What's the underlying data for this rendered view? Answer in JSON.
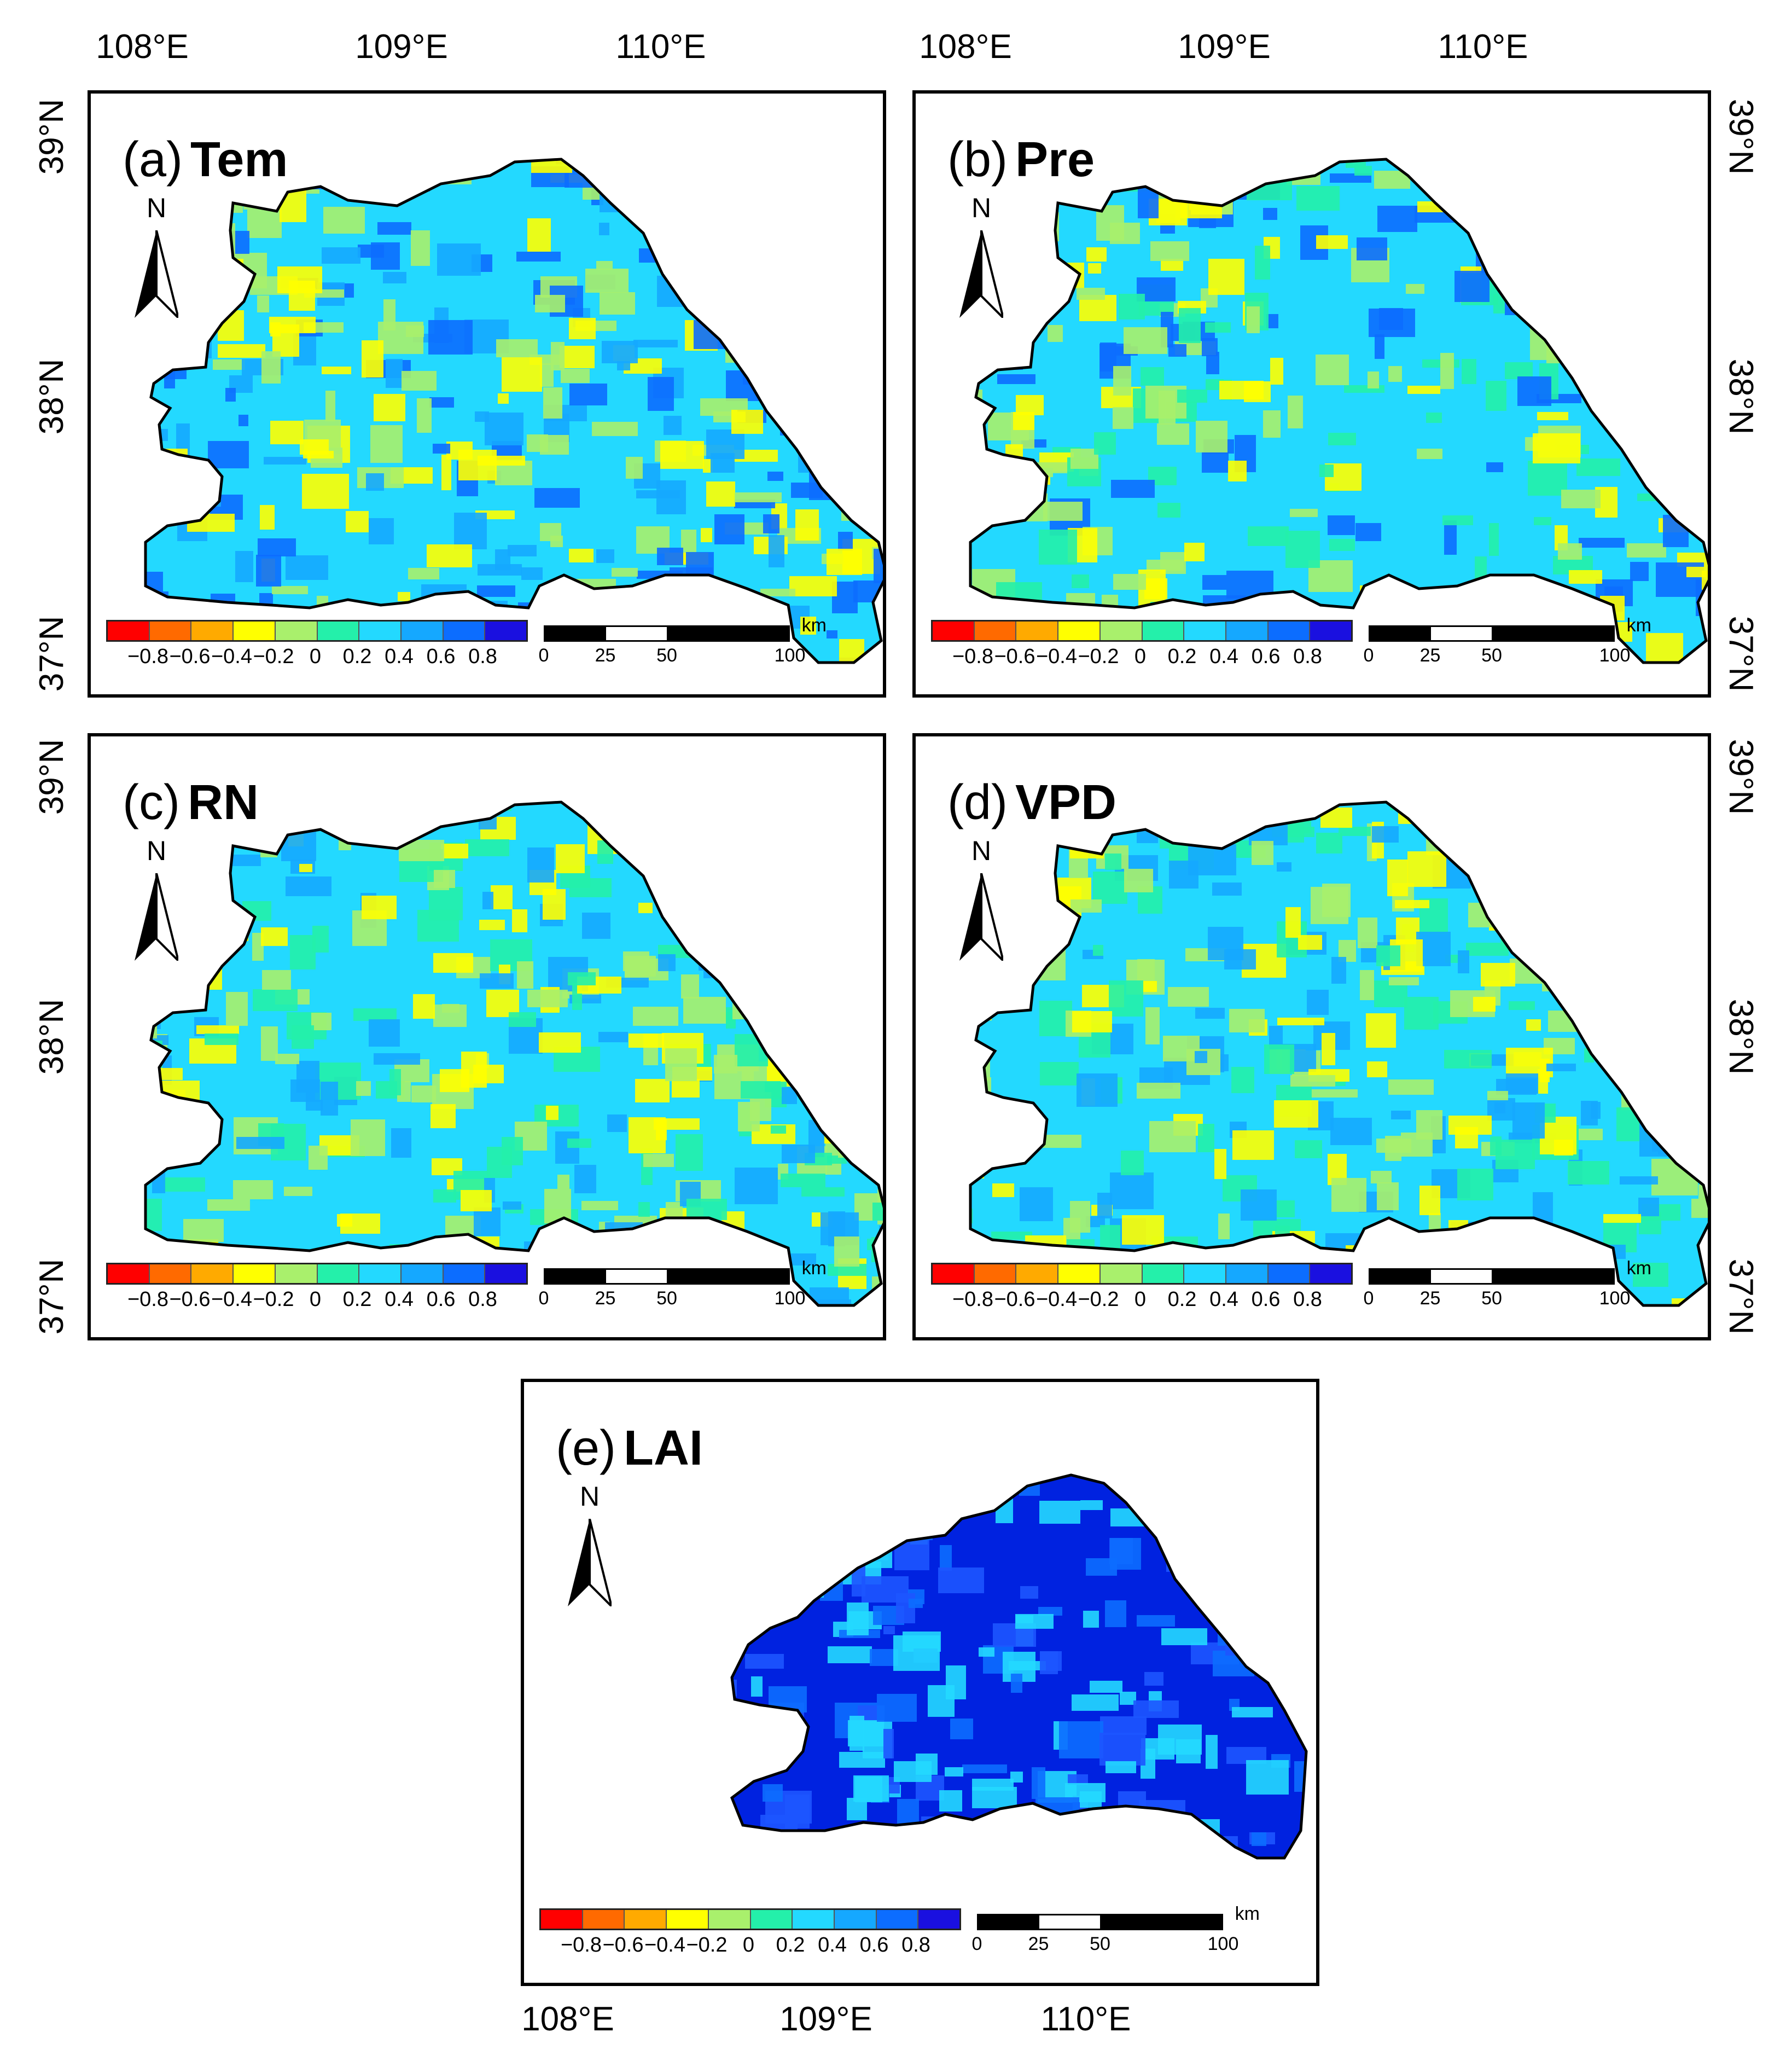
{
  "axes": {
    "lon_labels": [
      "108°E",
      "109°E",
      "110°E"
    ],
    "lat_labels": [
      "39°N",
      "38°N",
      "37°N"
    ]
  },
  "panels": [
    {
      "id": "a",
      "label": "(a)",
      "variable": "Tem",
      "dominant": [
        "#23D9FF",
        "#15A8FF",
        "#0C6DFF",
        "#A9F06C",
        "#FFFF00"
      ]
    },
    {
      "id": "b",
      "label": "(b)",
      "variable": "Pre",
      "dominant": [
        "#23D9FF",
        "#24F0AA",
        "#A9F06C",
        "#FFFF00",
        "#0C6DFF"
      ]
    },
    {
      "id": "c",
      "label": "(c)",
      "variable": "RN",
      "dominant": [
        "#23D9FF",
        "#15A8FF",
        "#A9F06C",
        "#FFFF00",
        "#24F0AA"
      ]
    },
    {
      "id": "d",
      "label": "(d)",
      "variable": "VPD",
      "dominant": [
        "#23D9FF",
        "#A9F06C",
        "#FFFF00",
        "#15A8FF",
        "#24F0AA"
      ]
    },
    {
      "id": "e",
      "label": "(e)",
      "variable": "LAI",
      "dominant": [
        "#0022E0",
        "#1D55FF",
        "#0C6DFF",
        "#23D9FF"
      ]
    }
  ],
  "north_arrow": {
    "letter": "N"
  },
  "legend": {
    "colors": [
      "#FF0000",
      "#FF6A00",
      "#FFAA00",
      "#FFFF00",
      "#A9F06C",
      "#24F0AA",
      "#23D9FF",
      "#15A8FF",
      "#0C6DFF",
      "#1A10E0"
    ],
    "labels": [
      "−0.8",
      "−0.6",
      "−0.4",
      "−0.2",
      "0",
      "0.2",
      "0.4",
      "0.6",
      "0.8"
    ]
  },
  "scale_bar": {
    "unit": "km",
    "labels": [
      "0",
      "25",
      "50",
      "100"
    ]
  }
}
